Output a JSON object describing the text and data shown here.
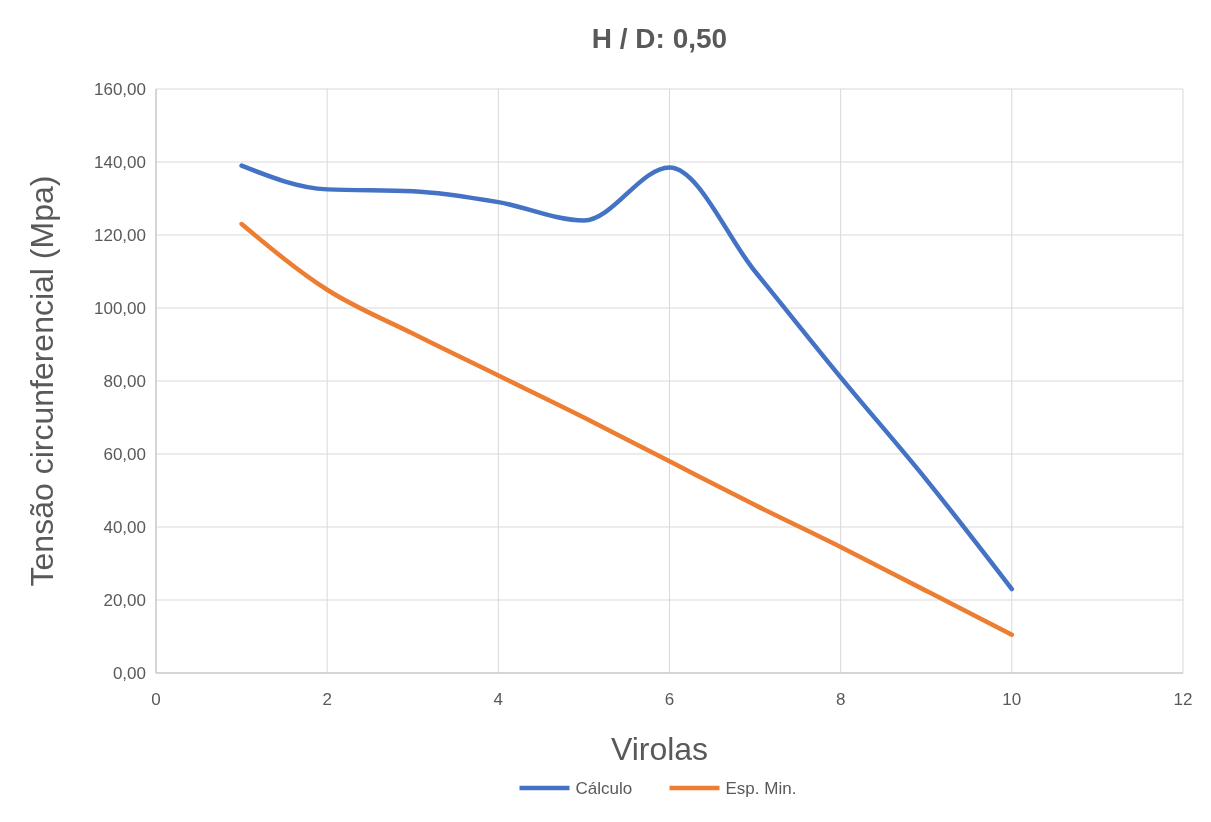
{
  "chart_data": {
    "type": "line",
    "title": "H / D: 0,50",
    "xlabel": "Virolas",
    "ylabel": "Tensão circunferencial (Mpa)",
    "x": [
      1,
      2,
      3,
      4,
      5,
      6,
      7,
      8,
      9,
      10
    ],
    "series": [
      {
        "name": "Cálculo",
        "color": "#4472c4",
        "values": [
          139,
          132.5,
          132,
          129,
          124,
          138.5,
          110,
          81,
          53,
          23
        ]
      },
      {
        "name": "Esp. Min.",
        "color": "#ed7d31",
        "values": [
          123,
          105,
          93,
          81.5,
          70,
          58,
          46,
          34.5,
          22.5,
          10.5
        ]
      }
    ],
    "xlim": [
      0,
      12
    ],
    "xticks": [
      0,
      2,
      4,
      6,
      8,
      10,
      12
    ],
    "ylim": [
      0,
      160
    ],
    "yticks": [
      {
        "value": 0,
        "label": "0,00"
      },
      {
        "value": 20,
        "label": "20,00"
      },
      {
        "value": 40,
        "label": "40,00"
      },
      {
        "value": 60,
        "label": "60,00"
      },
      {
        "value": 80,
        "label": "80,00"
      },
      {
        "value": 100,
        "label": "100,00"
      },
      {
        "value": 120,
        "label": "120,00"
      },
      {
        "value": 140,
        "label": "140,00"
      },
      {
        "value": 160,
        "label": "160,00"
      }
    ],
    "grid": true,
    "legend": "bottom",
    "marker": "none",
    "line_style": "solid"
  }
}
